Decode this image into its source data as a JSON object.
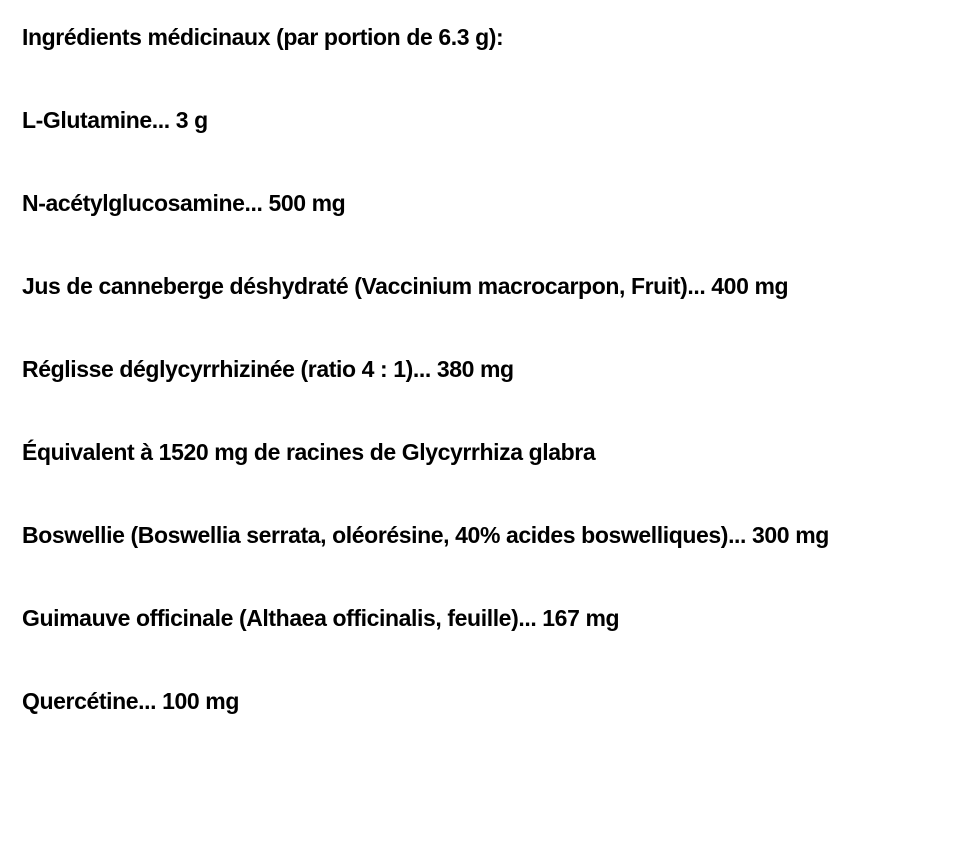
{
  "heading": "Ingrédients médicinaux (par portion de 6.3 g):",
  "ingredients": [
    "L-Glutamine... 3 g",
    "N-acétylglucosamine... 500 mg",
    "Jus de canneberge déshydraté (Vaccinium macrocarpon, Fruit)... 400 mg",
    "Réglisse déglycyrrhizinée (ratio 4 : 1)... 380 mg",
    "Équivalent à 1520 mg de racines de Glycyrrhiza glabra",
    "Boswellie (Boswellia serrata, oléorésine, 40% acides boswelliques)... 300 mg",
    "Guimauve officinale (Althaea officinalis, feuille)... 167 mg",
    "Quercétine... 100 mg"
  ]
}
